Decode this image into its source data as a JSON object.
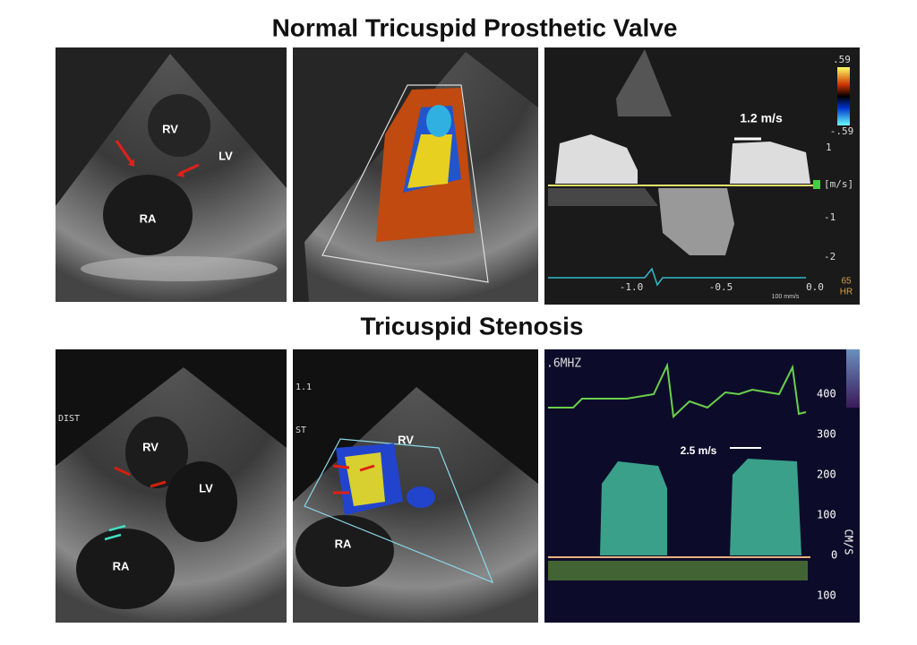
{
  "top": {
    "title": "Normal Tricuspid Prosthetic Valve",
    "panel_2d": {
      "labels": [
        "RV",
        "LV",
        "RA"
      ]
    },
    "doppler": {
      "velocity": "1.2 m/s",
      "scale": [
        ".59",
        "-.59"
      ],
      "y_ticks": [
        "1",
        "[m/s]",
        "-1",
        "-2"
      ],
      "x_ticks": [
        "-1.0",
        "-0.5",
        "0.0"
      ],
      "sweep": "100 mm/s",
      "hr_value": "65",
      "hr_label": "HR"
    }
  },
  "bottom": {
    "title": "Tricuspid Stenosis",
    "panel_2d": {
      "labels": [
        "RV",
        "LV",
        "RA"
      ],
      "corner": "DIST"
    },
    "panel_color": {
      "labels": [
        "RV",
        "RA"
      ],
      "corner": [
        "1.1",
        "ST"
      ]
    },
    "doppler": {
      "velocity": "2.5 m/s",
      "header": ".6MHZ",
      "y_ticks": [
        "400",
        "300",
        "200",
        "100",
        "0",
        "100"
      ],
      "unit": "CM/S"
    }
  }
}
